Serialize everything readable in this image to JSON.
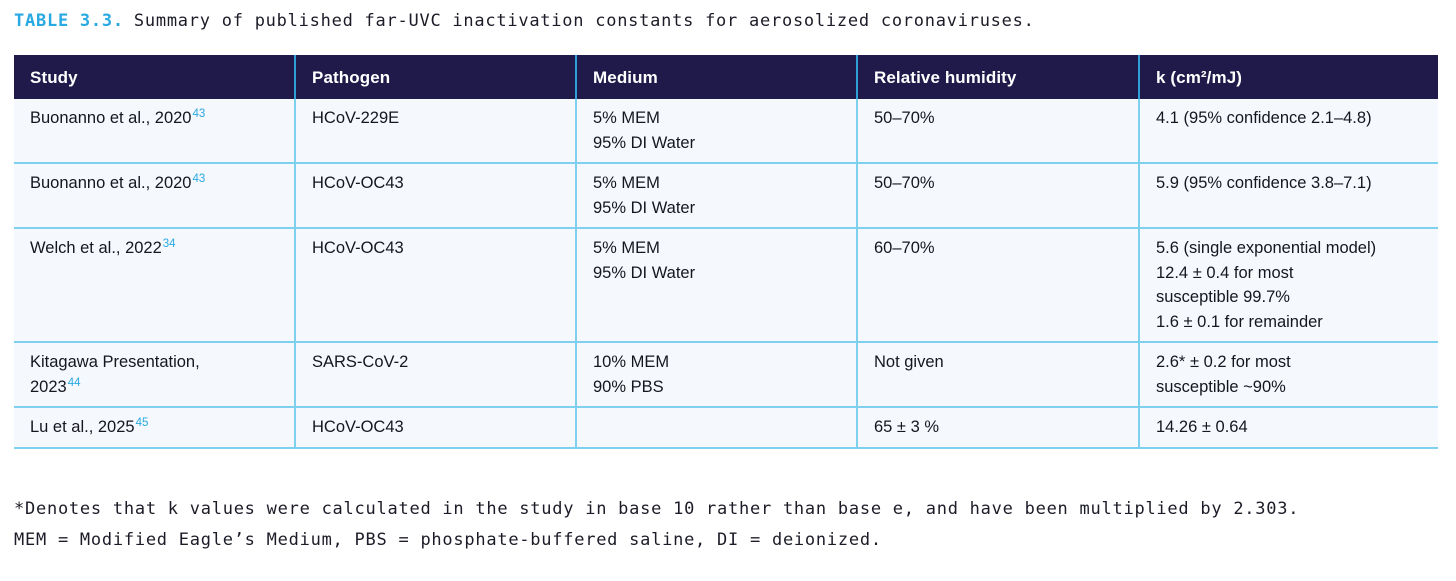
{
  "title": {
    "label": "TABLE 3.3.",
    "text": "Summary of published far-UVC inactivation constants for aerosolized coronaviruses."
  },
  "colors": {
    "accent_cyan": "#29a9e1",
    "header_bg": "#201a4a",
    "header_text": "#ffffff",
    "header_divider": "#2f9fd8",
    "body_border": "#7fd0ee",
    "cell_bg": "#f5f8fc",
    "text": "#16161f"
  },
  "table": {
    "headers": [
      "Study",
      "Pathogen",
      "Medium",
      "Relative humidity",
      "k (cm²/mJ)"
    ],
    "rows": [
      {
        "study_lines": [
          "Buonanno et al., 2020"
        ],
        "ref": "43",
        "pathogen": "HCoV-229E",
        "medium_lines": [
          "5% MEM",
          "95% DI Water"
        ],
        "humidity": "50–70%",
        "k_lines": [
          "4.1 (95% confidence 2.1–4.8)"
        ]
      },
      {
        "study_lines": [
          "Buonanno et al., 2020"
        ],
        "ref": "43",
        "pathogen": "HCoV-OC43",
        "medium_lines": [
          "5% MEM",
          "95% DI Water"
        ],
        "humidity": "50–70%",
        "k_lines": [
          "5.9 (95% confidence 3.8–7.1)"
        ]
      },
      {
        "study_lines": [
          "Welch et al., 2022"
        ],
        "ref": "34",
        "pathogen": "HCoV-OC43",
        "medium_lines": [
          "5% MEM",
          "95% DI Water"
        ],
        "humidity": "60–70%",
        "k_lines": [
          "5.6 (single exponential model)",
          "12.4 ± 0.4 for most",
          "susceptible 99.7%",
          "1.6 ± 0.1 for remainder"
        ]
      },
      {
        "study_lines": [
          "Kitagawa Presentation,",
          "2023"
        ],
        "ref": "44",
        "pathogen": "SARS-CoV-2",
        "medium_lines": [
          "10% MEM",
          "90% PBS"
        ],
        "humidity": "Not given",
        "k_lines": [
          "2.6* ± 0.2 for most",
          "susceptible ~90%"
        ]
      },
      {
        "study_lines": [
          "Lu et al., 2025"
        ],
        "ref": "45",
        "pathogen": "HCoV-OC43",
        "medium_lines": [],
        "humidity": "65 ± 3 %",
        "k_lines": [
          "14.26 ± 0.64"
        ]
      }
    ]
  },
  "footnotes": [
    "*Denotes that k values were calculated in the study in base 10 rather than base e, and have been multiplied by 2.303.",
    "MEM = Modified Eagle’s Medium, PBS = phosphate-buffered saline, DI = deionized."
  ]
}
